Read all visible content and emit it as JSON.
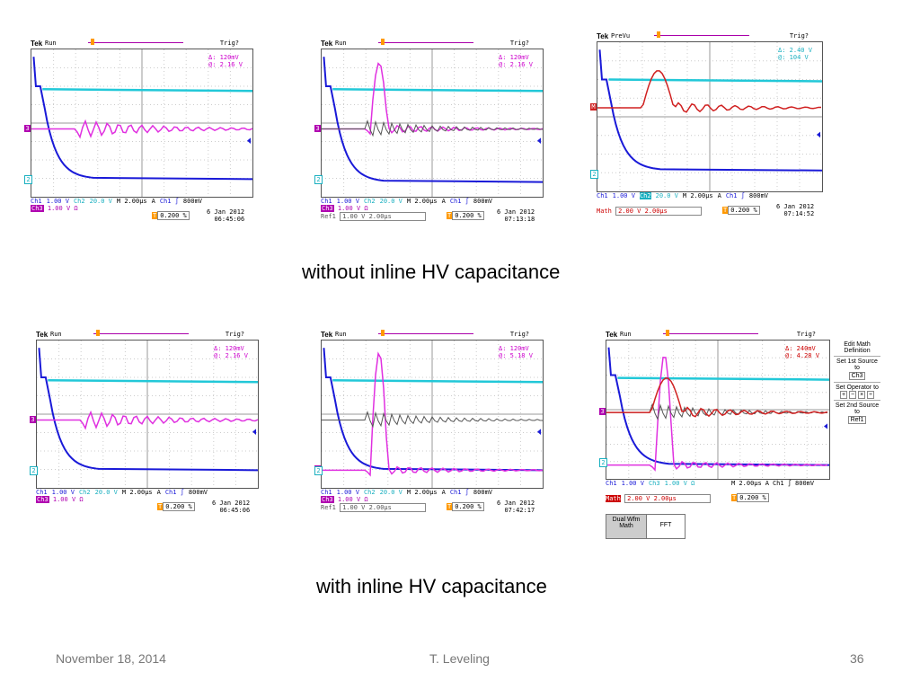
{
  "captions": {
    "top": "without inline HV capacitance",
    "bottom": "with inline HV capacitance"
  },
  "footer": {
    "date": "November 18, 2014",
    "author": "T. Leveling",
    "page": "36"
  },
  "scopes": [
    {
      "brand": "Tek",
      "mode": "Run",
      "trig": "Trig?",
      "cursor1": "Δ:   120mV",
      "cursor2": "@:   2.16 V",
      "row1": [
        "Ch1",
        "1.00 V",
        "Ch2",
        "20.0 V",
        "M 2.00µs",
        "A",
        "Ch1 ∫",
        "800mV"
      ],
      "row2": [
        "Ch3",
        "1.00 V Ω"
      ],
      "extra": "0.200 %",
      "date": "6 Jan  2012",
      "time": "06:45:06"
    },
    {
      "brand": "Tek",
      "mode": "Run",
      "trig": "Trig?",
      "cursor1": "Δ:   120mV",
      "cursor2": "@:   2.16 V",
      "row1": [
        "Ch1",
        "1.00 V",
        "Ch2",
        "20.0 V",
        "M 2.00µs",
        "A",
        "Ch1 ∫",
        "800mV"
      ],
      "row2": [
        "Ch3",
        "1.00 V Ω"
      ],
      "ref": [
        "Ref1",
        "1.00 V",
        "2.00µs"
      ],
      "extra": "0.200 %",
      "date": "6 Jan  2012",
      "time": "07:13:18"
    },
    {
      "brand": "Tek",
      "mode": "PreVu",
      "trig": "Trig?",
      "cursor1": "Δ:   2.40 V",
      "cursor2": "@:   104 V",
      "row1": [
        "Ch1",
        "1.00 V",
        "Ch2",
        "20.0 V",
        "M 2.00µs",
        "A",
        "Ch1 ∫",
        "800mV"
      ],
      "math": [
        "Math",
        "2.00 V",
        "2.00µs"
      ],
      "extra": "0.200 %",
      "date": "6 Jan  2012",
      "time": "07:14:52"
    },
    {
      "brand": "Tek",
      "mode": "Run",
      "trig": "Trig?",
      "cursor1": "Δ:   120mV",
      "cursor2": "@:   2.16 V",
      "row1": [
        "Ch1",
        "1.00 V",
        "Ch2",
        "20.0 V",
        "M 2.00µs",
        "A",
        "Ch1 ∫",
        "800mV"
      ],
      "row2": [
        "Ch3",
        "1.00 V Ω"
      ],
      "extra": "0.200 %",
      "date": "6 Jan  2012",
      "time": "06:45:06"
    },
    {
      "brand": "Tek",
      "mode": "Run",
      "trig": "Trig?",
      "cursor1": "Δ:   120mV",
      "cursor2": "@:   5.18 V",
      "row1": [
        "Ch1",
        "1.00 V",
        "Ch2",
        "20.0 V",
        "M 2.00µs",
        "A",
        "Ch1 ∫",
        "800mV"
      ],
      "row2": [
        "Ch3",
        "1.00 V Ω"
      ],
      "ref": [
        "Ref1",
        "1.00 V",
        "2.00µs"
      ],
      "extra": "0.200 %",
      "date": "6 Jan  2012",
      "time": "07:42:17"
    },
    {
      "brand": "Tek",
      "mode": "Run",
      "trig": "Trig?",
      "cursor1": "Δ:   240mV",
      "cursor2": "@:   4.28 V",
      "row1": [
        "Ch1",
        "1.00 V",
        "Ch3",
        "1.00 V Ω"
      ],
      "math": [
        "Math",
        "2.00 V",
        "2.00µs"
      ],
      "extra": "0.200 %",
      "row1b": [
        "M 2.00µs",
        "A",
        "Ch1 ∫",
        "800mV"
      ]
    }
  ],
  "math_menu": {
    "edit": "Edit Math Definition",
    "src1": "Set 1st Source to",
    "src1val": "Ch3",
    "op": "Set Operator to",
    "ops": [
      "+",
      "−",
      "×",
      "÷"
    ],
    "src2": "Set 2nd Source to",
    "src2val": "Ref1"
  },
  "bottom_buttons": {
    "dual": "Dual Wfm Math",
    "fft": "FFT"
  },
  "markers": {
    "ch3": "3",
    "ch2": "2",
    "math": "M"
  }
}
